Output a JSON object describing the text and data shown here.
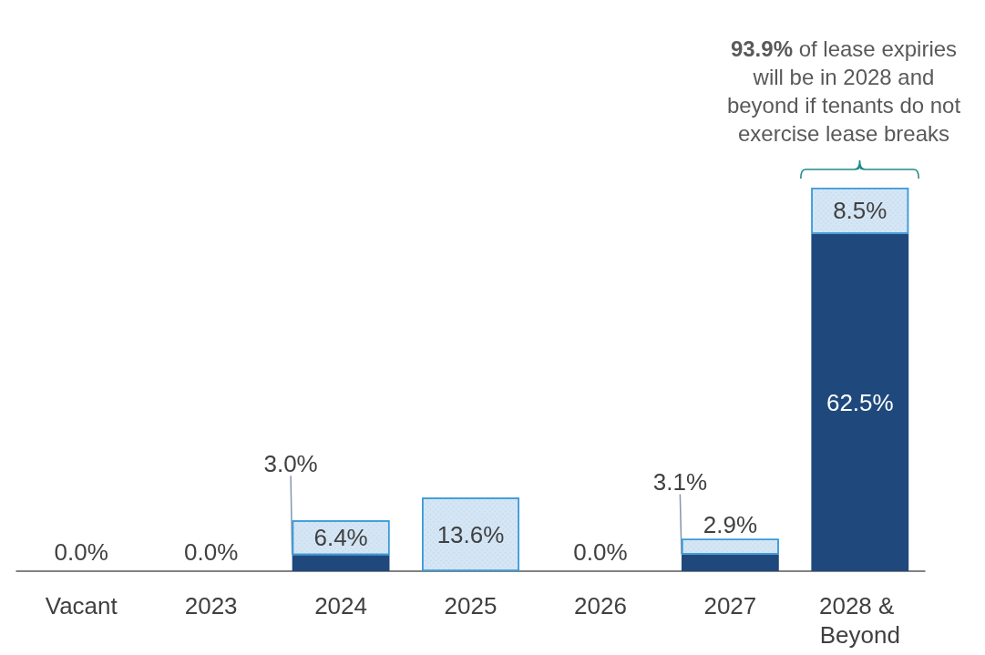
{
  "chart_data": {
    "type": "bar",
    "stacked": true,
    "categories": [
      "Vacant",
      "2023",
      "2024",
      "2025",
      "2026",
      "2027",
      "2028 & Beyond"
    ],
    "series": [
      {
        "color": "#1f497d",
        "values": [
          0,
          0,
          3.0,
          0,
          0,
          3.1,
          62.5
        ],
        "value_labels": [
          "0.0%",
          "0.0%",
          "3.0%",
          null,
          "0.0%",
          "3.1%",
          "62.5%"
        ]
      },
      {
        "color": "#d5e6f5",
        "values": [
          0,
          0,
          6.4,
          13.6,
          0,
          2.9,
          8.5
        ],
        "value_labels": [
          null,
          null,
          "6.4%",
          "13.6%",
          null,
          "2.9%",
          "8.5%"
        ]
      }
    ],
    "annotations": [
      {
        "text": "93.9% of lease expiries will be in 2028 and beyond if tenants do not exercise lease breaks",
        "x": "2028 & Beyond",
        "y": 71
      }
    ],
    "grid": false
  }
}
